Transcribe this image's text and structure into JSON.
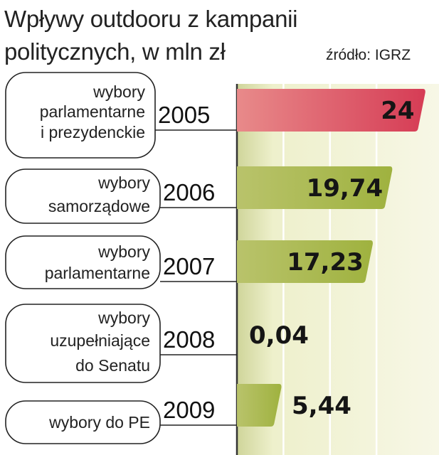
{
  "title": "Wpływy outdooru z kampanii politycznych, w mln zł",
  "source": "źródło: IGRZ",
  "colors": {
    "highlight": "#dc5565",
    "bar": "#a3b546",
    "panel": "#f3f3dd",
    "grid": "#ffffff",
    "axis": "#222222"
  },
  "chart_data": {
    "type": "bar",
    "orientation": "horizontal",
    "title": "Wpływy outdooru z kampanii politycznych, w mln zł",
    "source": "źródło: IGRZ",
    "categories": [
      "2005",
      "2006",
      "2007",
      "2008",
      "2009"
    ],
    "category_descriptions": [
      [
        "wybory",
        "parlamentarne",
        "i prezydenckie"
      ],
      [
        "wybory",
        "samorządowe"
      ],
      [
        "wybory",
        "parlamentarne"
      ],
      [
        "wybory",
        "uzupełniające",
        "do Senatu"
      ],
      [
        "wybory do PE"
      ]
    ],
    "values": [
      24,
      19.74,
      17.23,
      0.04,
      5.44
    ],
    "value_labels": [
      "24",
      "19,74",
      "17,23",
      "0,04",
      "5,44"
    ],
    "xlim": [
      0,
      24.5
    ],
    "grid": true,
    "highlight_index": 0
  }
}
